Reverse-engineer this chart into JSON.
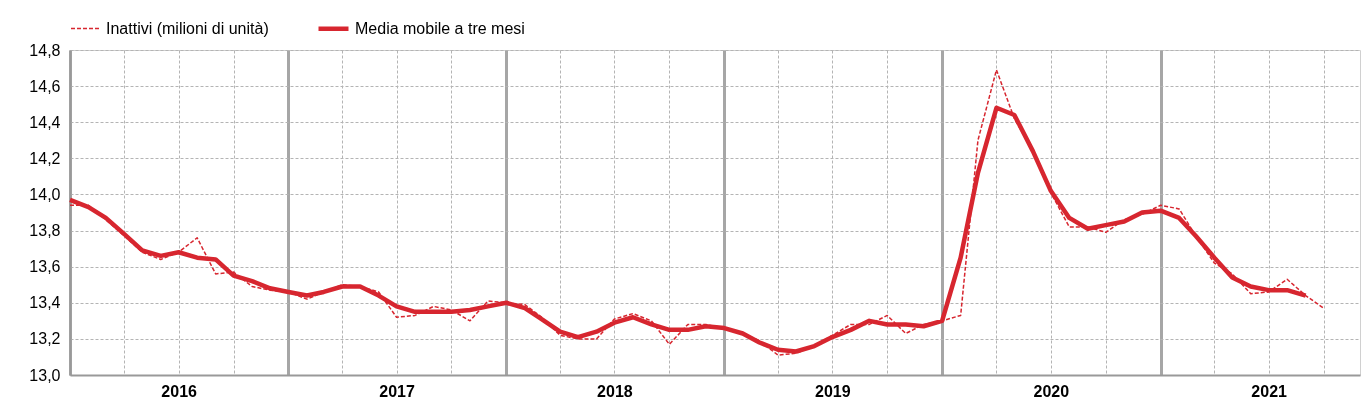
{
  "chart_data": {
    "type": "line",
    "x": [
      "2016-01",
      "2016-02",
      "2016-03",
      "2016-04",
      "2016-05",
      "2016-06",
      "2016-07",
      "2016-08",
      "2016-09",
      "2016-10",
      "2016-11",
      "2016-12",
      "2017-01",
      "2017-02",
      "2017-03",
      "2017-04",
      "2017-05",
      "2017-06",
      "2017-07",
      "2017-08",
      "2017-09",
      "2017-10",
      "2017-11",
      "2017-12",
      "2018-01",
      "2018-02",
      "2018-03",
      "2018-04",
      "2018-05",
      "2018-06",
      "2018-07",
      "2018-08",
      "2018-09",
      "2018-10",
      "2018-11",
      "2018-12",
      "2019-01",
      "2019-02",
      "2019-03",
      "2019-04",
      "2019-05",
      "2019-06",
      "2019-07",
      "2019-08",
      "2019-09",
      "2019-10",
      "2019-11",
      "2019-12",
      "2020-01",
      "2020-02",
      "2020-03",
      "2020-04",
      "2020-05",
      "2020-06",
      "2020-07",
      "2020-08",
      "2020-09",
      "2020-10",
      "2020-11",
      "2020-12",
      "2021-01",
      "2021-02",
      "2021-03",
      "2021-04",
      "2021-05",
      "2021-06",
      "2021-07",
      "2021-08",
      "2021-09",
      "2021-10"
    ],
    "series": [
      {
        "name": "Inattivi (milioni di unità)",
        "color": "#d7262f",
        "line_style": "dashed",
        "values": [
          13.94,
          13.94,
          13.86,
          13.77,
          13.68,
          13.64,
          13.68,
          13.76,
          13.56,
          13.57,
          13.49,
          13.47,
          13.46,
          13.42,
          13.46,
          13.5,
          13.49,
          13.46,
          13.32,
          13.33,
          13.38,
          13.36,
          13.3,
          13.41,
          13.4,
          13.39,
          13.32,
          13.22,
          13.2,
          13.2,
          13.31,
          13.34,
          13.3,
          13.17,
          13.28,
          13.28,
          13.26,
          13.23,
          13.19,
          13.11,
          13.12,
          13.16,
          13.22,
          13.28,
          13.28,
          13.33,
          13.23,
          13.28,
          13.3,
          13.33,
          14.3,
          14.69,
          14.42,
          14.24,
          14.01,
          13.82,
          13.82,
          13.79,
          13.86,
          13.89,
          13.94,
          13.92,
          13.77,
          13.62,
          13.56,
          13.45,
          13.46,
          13.53,
          13.44,
          13.37
        ]
      },
      {
        "name": "Media mobile a tre mesi",
        "color": "#d7262f",
        "line_style": "solid",
        "values": [
          13.97,
          13.93,
          13.87,
          13.78,
          13.69,
          13.66,
          13.68,
          13.65,
          13.64,
          13.55,
          13.52,
          13.48,
          13.46,
          13.44,
          13.46,
          13.49,
          13.49,
          13.44,
          13.38,
          13.35,
          13.35,
          13.35,
          13.36,
          13.38,
          13.4,
          13.37,
          13.31,
          13.24,
          13.21,
          13.24,
          13.29,
          13.32,
          13.28,
          13.25,
          13.25,
          13.27,
          13.26,
          13.23,
          13.18,
          13.14,
          13.13,
          13.16,
          13.21,
          13.25,
          13.3,
          13.28,
          13.28,
          13.27,
          13.3,
          13.65,
          14.12,
          14.48,
          14.44,
          14.24,
          14.02,
          13.87,
          13.81,
          13.83,
          13.85,
          13.9,
          13.91,
          13.87,
          13.77,
          13.65,
          13.54,
          13.49,
          13.47,
          13.47,
          13.44,
          null
        ]
      }
    ],
    "xlim": [
      "2016-01",
      "2021-12"
    ],
    "xticks": [
      {
        "value": "2016-01",
        "label": null
      },
      {
        "value": "2016-04",
        "label": null
      },
      {
        "value": "2016-07",
        "label": "2016"
      },
      {
        "value": "2016-10",
        "label": null
      },
      {
        "value": "2017-01",
        "label": null
      },
      {
        "value": "2017-04",
        "label": null
      },
      {
        "value": "2017-07",
        "label": "2017"
      },
      {
        "value": "2017-10",
        "label": null
      },
      {
        "value": "2018-01",
        "label": null
      },
      {
        "value": "2018-04",
        "label": null
      },
      {
        "value": "2018-07",
        "label": "2018"
      },
      {
        "value": "2018-10",
        "label": null
      },
      {
        "value": "2019-01",
        "label": null
      },
      {
        "value": "2019-04",
        "label": null
      },
      {
        "value": "2019-07",
        "label": "2019"
      },
      {
        "value": "2019-10",
        "label": null
      },
      {
        "value": "2020-01",
        "label": null
      },
      {
        "value": "2020-04",
        "label": null
      },
      {
        "value": "2020-07",
        "label": "2020"
      },
      {
        "value": "2020-10",
        "label": null
      },
      {
        "value": "2021-01",
        "label": null
      },
      {
        "value": "2021-04",
        "label": null
      },
      {
        "value": "2021-07",
        "label": "2021"
      },
      {
        "value": "2021-10",
        "label": null
      }
    ],
    "ylim": [
      13.0,
      14.8
    ],
    "yticks": [
      {
        "value": 13.0,
        "label": "13,0"
      },
      {
        "value": 13.2,
        "label": "13,2"
      },
      {
        "value": 13.4,
        "label": "13,4"
      },
      {
        "value": 13.6,
        "label": "13,6"
      },
      {
        "value": 13.8,
        "label": "13,8"
      },
      {
        "value": 14.0,
        "label": "14,0"
      },
      {
        "value": 14.2,
        "label": "14,2"
      },
      {
        "value": 14.4,
        "label": "14,4"
      },
      {
        "value": 14.6,
        "label": "14,6"
      },
      {
        "value": 14.8,
        "label": "14,8"
      }
    ],
    "grid": true,
    "legend": "top"
  }
}
